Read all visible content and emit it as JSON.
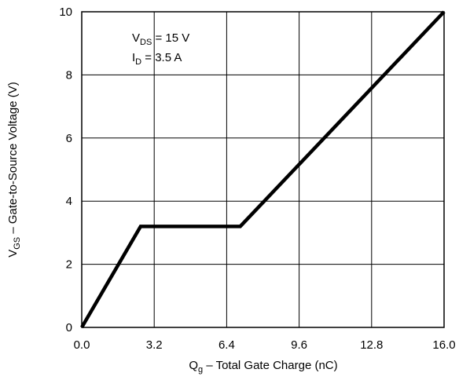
{
  "chart_data": {
    "type": "line",
    "title": "",
    "xlabel": {
      "main": "Q",
      "sub": "g",
      "rest": " –  Total Gate Charge (nC)"
    },
    "ylabel": {
      "main": "V",
      "sub": "GS",
      "rest": " –  Gate-to-Source Voltage (V)"
    },
    "xlim": [
      0,
      16
    ],
    "ylim": [
      0,
      10
    ],
    "x_ticks": [
      0,
      3.2,
      6.4,
      9.6,
      12.8,
      16
    ],
    "x_tick_labels": [
      "0.0",
      "3.2",
      "6.4",
      "9.6",
      "12.8",
      "16.0"
    ],
    "y_ticks": [
      0,
      2,
      4,
      6,
      8,
      10
    ],
    "y_tick_labels": [
      "0",
      "2",
      "4",
      "6",
      "8",
      "10"
    ],
    "grid": true,
    "series": [
      {
        "x": [
          0,
          2.6,
          7.0,
          16.0
        ],
        "y": [
          0,
          3.2,
          3.2,
          10.0
        ]
      }
    ],
    "annotations": [
      {
        "main": "V",
        "sub": "DS",
        "rest": " = 15 V"
      },
      {
        "main": "I",
        "sub": "D",
        "rest": " = 3.5 A"
      }
    ],
    "colors": {
      "line": "#000000",
      "grid": "#000000",
      "background": "#ffffff"
    }
  }
}
